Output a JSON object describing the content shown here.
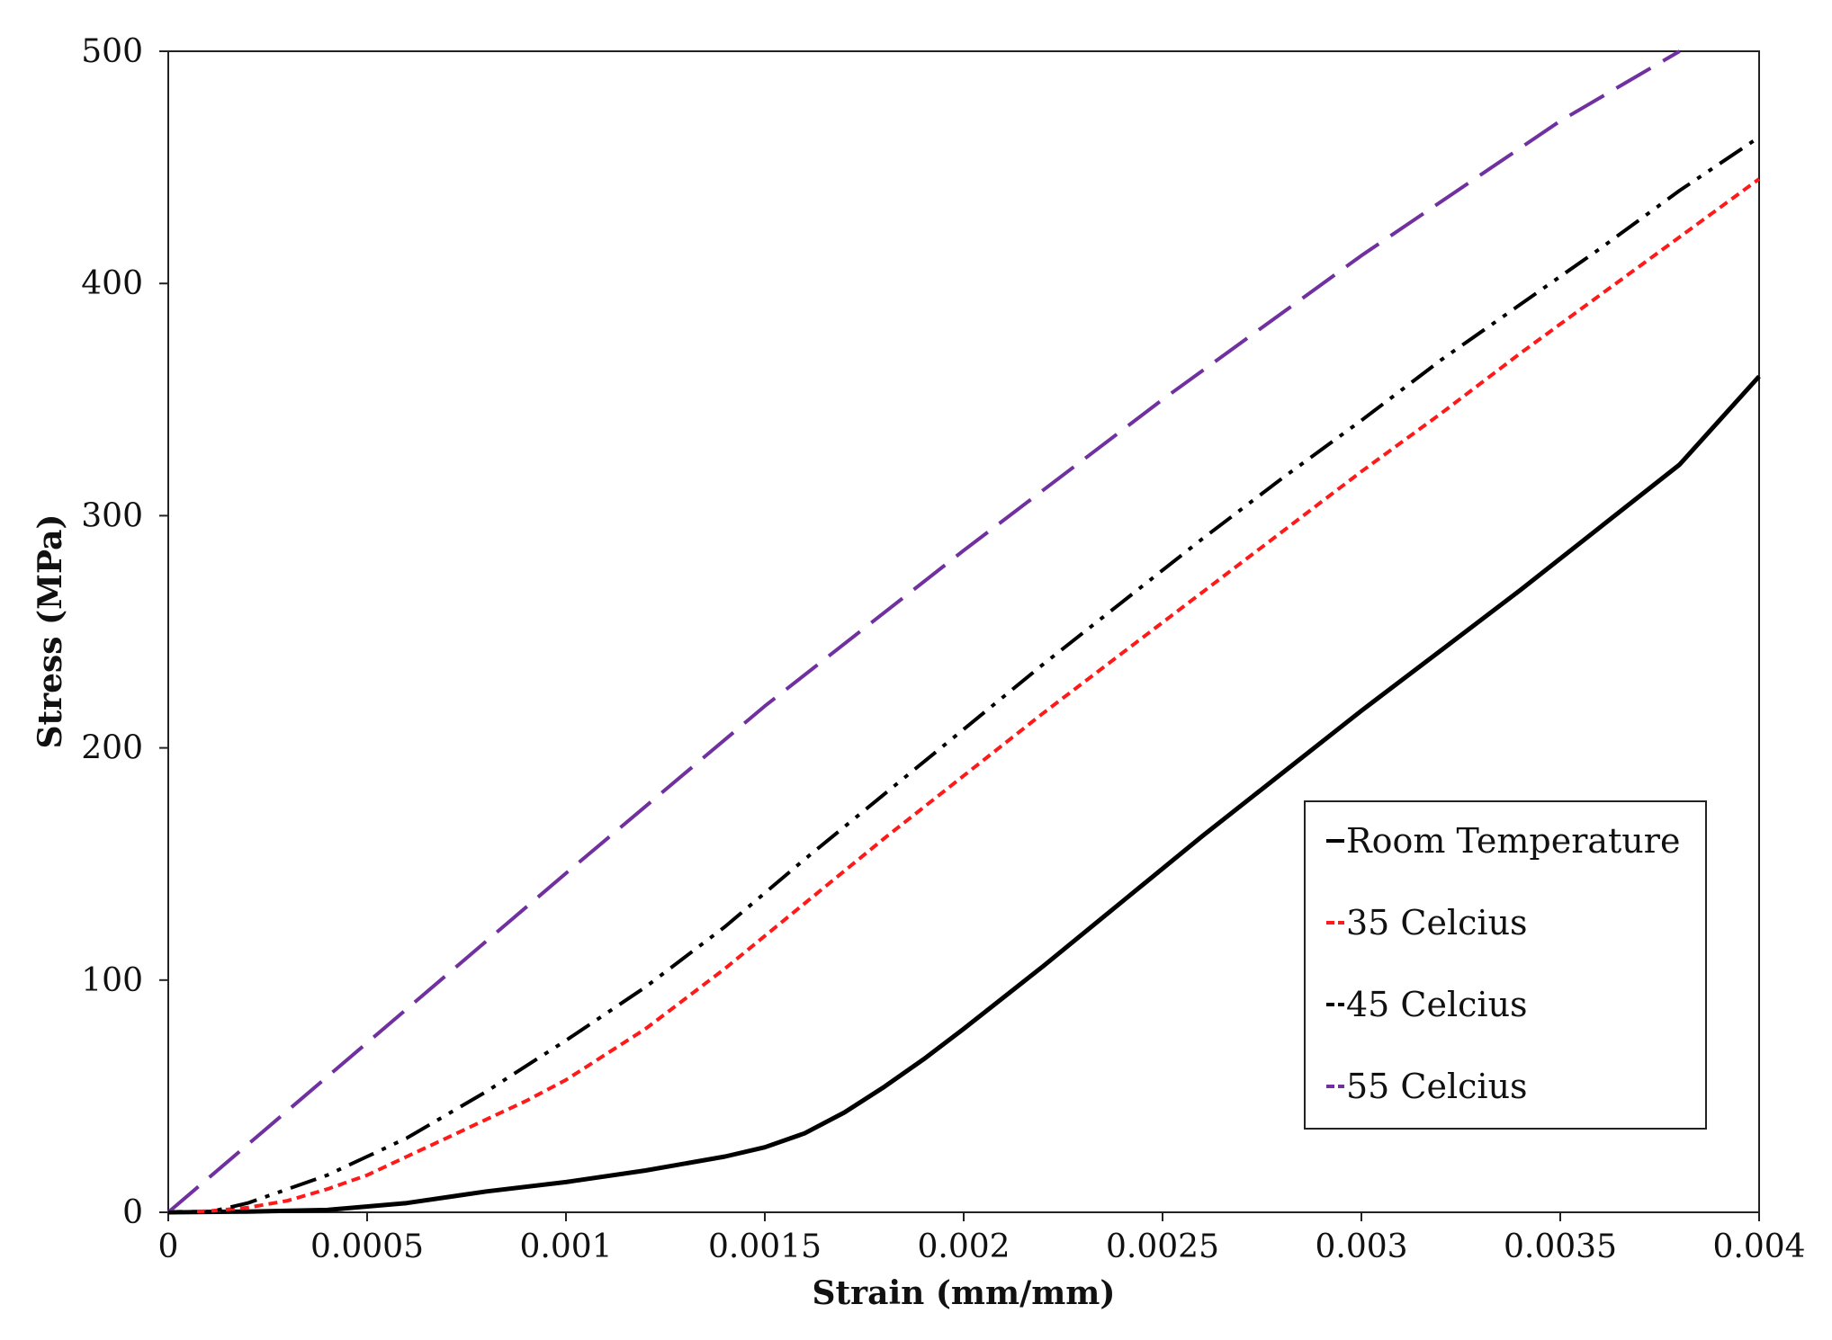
{
  "chart_data": {
    "type": "line",
    "title": "",
    "xlabel": "Strain (mm/mm)",
    "ylabel": "Stress (MPa)",
    "xlim": [
      0,
      0.004
    ],
    "ylim": [
      0,
      500
    ],
    "grid": false,
    "legend_position": "lower-right",
    "x_ticks": [
      0,
      0.0005,
      0.001,
      0.0015,
      0.002,
      0.0025,
      0.003,
      0.0035,
      0.004
    ],
    "x_tick_labels": [
      "0",
      "0.0005",
      "0.001",
      "0.0015",
      "0.002",
      "0.0025",
      "0.003",
      "0.0035",
      "0.004"
    ],
    "y_ticks": [
      0,
      100,
      200,
      300,
      400,
      500
    ],
    "y_tick_labels": [
      "0",
      "100",
      "200",
      "300",
      "400",
      "500"
    ],
    "series": [
      {
        "name": "Room Temperature",
        "color": "#000000",
        "dash": "solid",
        "x": [
          0,
          0.0002,
          0.0004,
          0.0006,
          0.0008,
          0.001,
          0.0012,
          0.0014,
          0.0015,
          0.0016,
          0.0017,
          0.0018,
          0.0019,
          0.002,
          0.0022,
          0.0024,
          0.0026,
          0.0028,
          0.003,
          0.0032,
          0.0034,
          0.0036,
          0.0038,
          0.004
        ],
        "y": [
          0,
          0.3,
          1,
          4,
          9,
          13,
          18,
          24,
          28,
          34,
          43,
          54,
          66,
          79,
          106,
          134,
          162,
          189,
          216,
          242,
          268,
          295,
          322,
          360
        ]
      },
      {
        "name": "35 Celcius",
        "color": "#ff1a1a",
        "dash": "short",
        "x": [
          0,
          0.0001,
          0.0002,
          0.0003,
          0.0004,
          0.0005,
          0.0006,
          0.0007,
          0.0008,
          0.0009,
          0.001,
          0.0011,
          0.0012,
          0.0013,
          0.0014,
          0.0015,
          0.0016,
          0.0018,
          0.002,
          0.0022,
          0.0024,
          0.0026,
          0.0028,
          0.003,
          0.0032,
          0.0034,
          0.0036,
          0.0038,
          0.004
        ],
        "y": [
          0,
          0.5,
          2,
          5,
          10,
          16,
          24,
          32,
          40,
          48,
          57,
          68,
          79,
          92,
          105,
          119,
          133,
          161,
          188,
          215,
          241,
          267,
          293,
          319,
          344,
          370,
          395,
          420,
          445
        ]
      },
      {
        "name": "45 Celcius",
        "color": "#000000",
        "dash": "dashdotdot",
        "x": [
          0,
          0.0001,
          0.0002,
          0.0003,
          0.0004,
          0.0005,
          0.0006,
          0.0008,
          0.001,
          0.0012,
          0.0014,
          0.0016,
          0.0018,
          0.002,
          0.0022,
          0.0024,
          0.0026,
          0.0028,
          0.003,
          0.0032,
          0.0034,
          0.0036,
          0.0038,
          0.004
        ],
        "y": [
          0,
          0,
          4,
          10,
          16,
          24,
          32,
          52,
          74,
          97,
          123,
          152,
          180,
          208,
          236,
          263,
          290,
          316,
          341,
          367,
          391,
          415,
          440,
          463
        ]
      },
      {
        "name": "55 Celcius",
        "color": "#7030a0",
        "dash": "long",
        "x": [
          0,
          0.0005,
          0.001,
          0.0015,
          0.002,
          0.0025,
          0.003,
          0.0035,
          0.0038
        ],
        "y": [
          0,
          73,
          146,
          218,
          285,
          350,
          412,
          470,
          500
        ]
      }
    ]
  }
}
